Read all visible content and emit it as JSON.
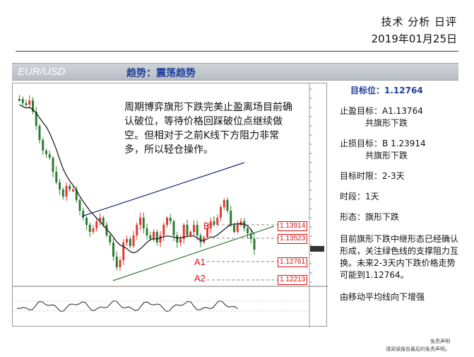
{
  "header": {
    "title": "技术 分析 日评",
    "date": "2019年01月25日"
  },
  "banner": {
    "pair": "EUR/USD",
    "trend": "趋势：震荡趋势"
  },
  "chart": {
    "note": "周期博弈旗形下跌完美止盈离场目前确认破位，等待价格回踩破位点继续做空。但相对于之前K线下方阻力非常多，所以轻仓操作。",
    "labels": {
      "b": "B",
      "a1": "A1",
      "a2": "A2"
    },
    "price_tags": [
      "1.13914",
      "1.13523",
      "1.12761",
      "1.12213"
    ],
    "colors": {
      "up": "#e53935",
      "down": "#2e7d32",
      "upper_line": "#1a237e",
      "lower_line": "#2e7d32",
      "ma": "#111111"
    }
  },
  "side": {
    "target": "目标位：1.12764",
    "take_profit": "止盈目标：A1.13764",
    "take_profit_sub": "共旗形下跌",
    "stop_loss": "止损目标：B 1.23914",
    "stop_loss_sub": "共旗形下跌",
    "horizon": "目标时限：2-3天",
    "timeframe": "时段：1天",
    "pattern": "形态：旗形下跌",
    "analysis": "目前旗形下跌中继形态已经确认形成，关注绿色线的支撑阻力互换。未来2-3天内下跌价格走势可能到1.12764。",
    "ma_note": "由移动平均线向下增强"
  },
  "footer": {
    "line1": "免责声明",
    "line2": "请阅读报告最后的免责声明。"
  }
}
